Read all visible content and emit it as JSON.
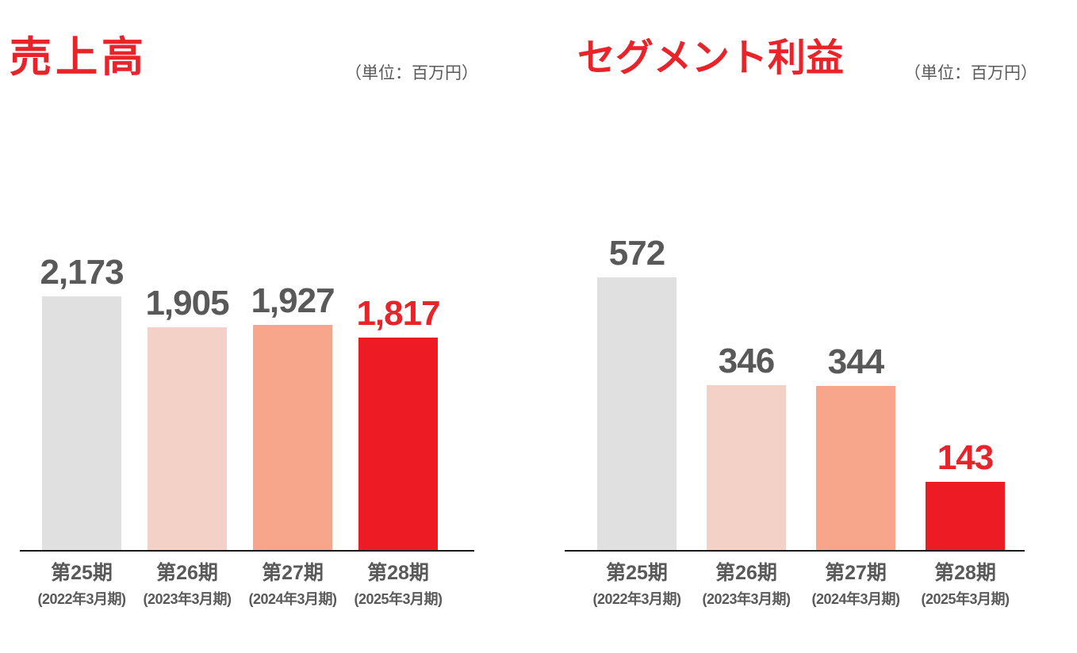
{
  "colors": {
    "title_red": "#e8232a",
    "bar_red": "#ed1c24",
    "bar_gray": "#e0e0e0",
    "bar_pink": "#f4d1c7",
    "bar_salmon": "#f8a68b",
    "text_dark": "#595959",
    "axis": "#1a1a1a"
  },
  "chart_data": [
    {
      "type": "bar",
      "title": "売上高",
      "unit": "（単位：百万円）",
      "categories": [
        "第25期",
        "第26期",
        "第27期",
        "第28期"
      ],
      "category_sublabels": [
        "(2022年3月期)",
        "(2023年3月期)",
        "(2024年3月期)",
        "(2025年3月期)"
      ],
      "values": [
        2173,
        1905,
        1927,
        1817
      ],
      "value_labels": [
        "2,173",
        "1,905",
        "1,927",
        "1,817"
      ],
      "bar_colors": [
        "#e0e0e0",
        "#f4d1c7",
        "#f8a68b",
        "#ed1c24"
      ],
      "value_label_colors": [
        "#595959",
        "#595959",
        "#595959",
        "#e8232a"
      ],
      "ylim": [
        0,
        2173
      ],
      "grid": false,
      "legend": false
    },
    {
      "type": "bar",
      "title": "セグメント利益",
      "unit": "（単位：百万円）",
      "categories": [
        "第25期",
        "第26期",
        "第27期",
        "第28期"
      ],
      "category_sublabels": [
        "(2022年3月期)",
        "(2023年3月期)",
        "(2024年3月期)",
        "(2025年3月期)"
      ],
      "values": [
        572,
        346,
        344,
        143
      ],
      "value_labels": [
        "572",
        "346",
        "344",
        "143"
      ],
      "bar_colors": [
        "#e0e0e0",
        "#f4d1c7",
        "#f8a68b",
        "#ed1c24"
      ],
      "value_label_colors": [
        "#595959",
        "#595959",
        "#595959",
        "#e8232a"
      ],
      "ylim": [
        0,
        572
      ],
      "grid": false,
      "legend": false
    }
  ]
}
